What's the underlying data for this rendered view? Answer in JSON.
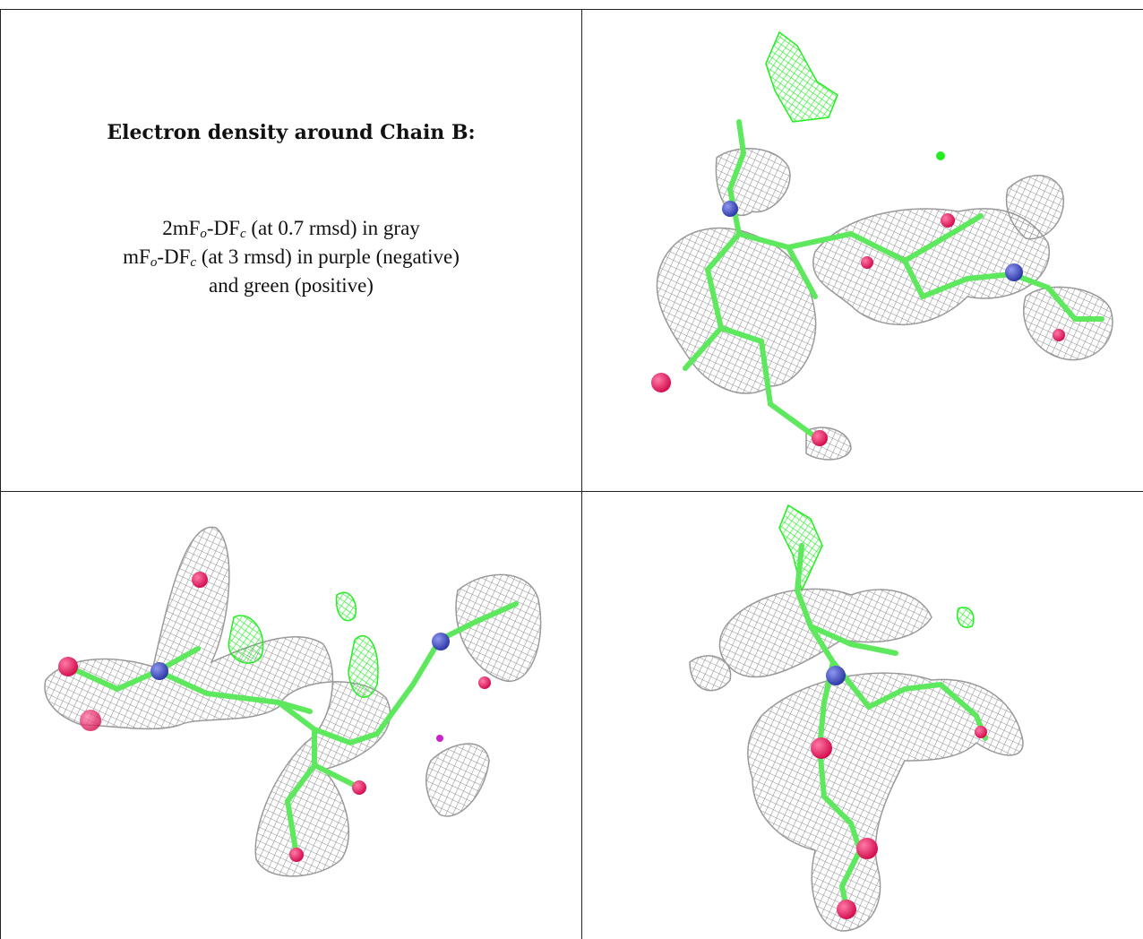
{
  "caption": {
    "title": "Electron density around Chain B:",
    "line1": {
      "a": "2mF",
      "sub1": "o",
      "b": "-DF",
      "sub2": "c",
      "rest": " (at 0.7 rmsd) in gray"
    },
    "line2": {
      "a": "mF",
      "sub1": "o",
      "b": "-DF",
      "sub2": "c",
      "rest": " (at 3 rmsd) in purple (negative)"
    },
    "line3": "and green (positive)"
  },
  "colors": {
    "mesh_2fofc": "#8e8e8e",
    "mesh_positive": "#22ee22",
    "mesh_negative": "#cc22cc",
    "carbon": "#5de85d",
    "oxygen": "#e8195e",
    "nitrogen": "#4a55c8"
  }
}
